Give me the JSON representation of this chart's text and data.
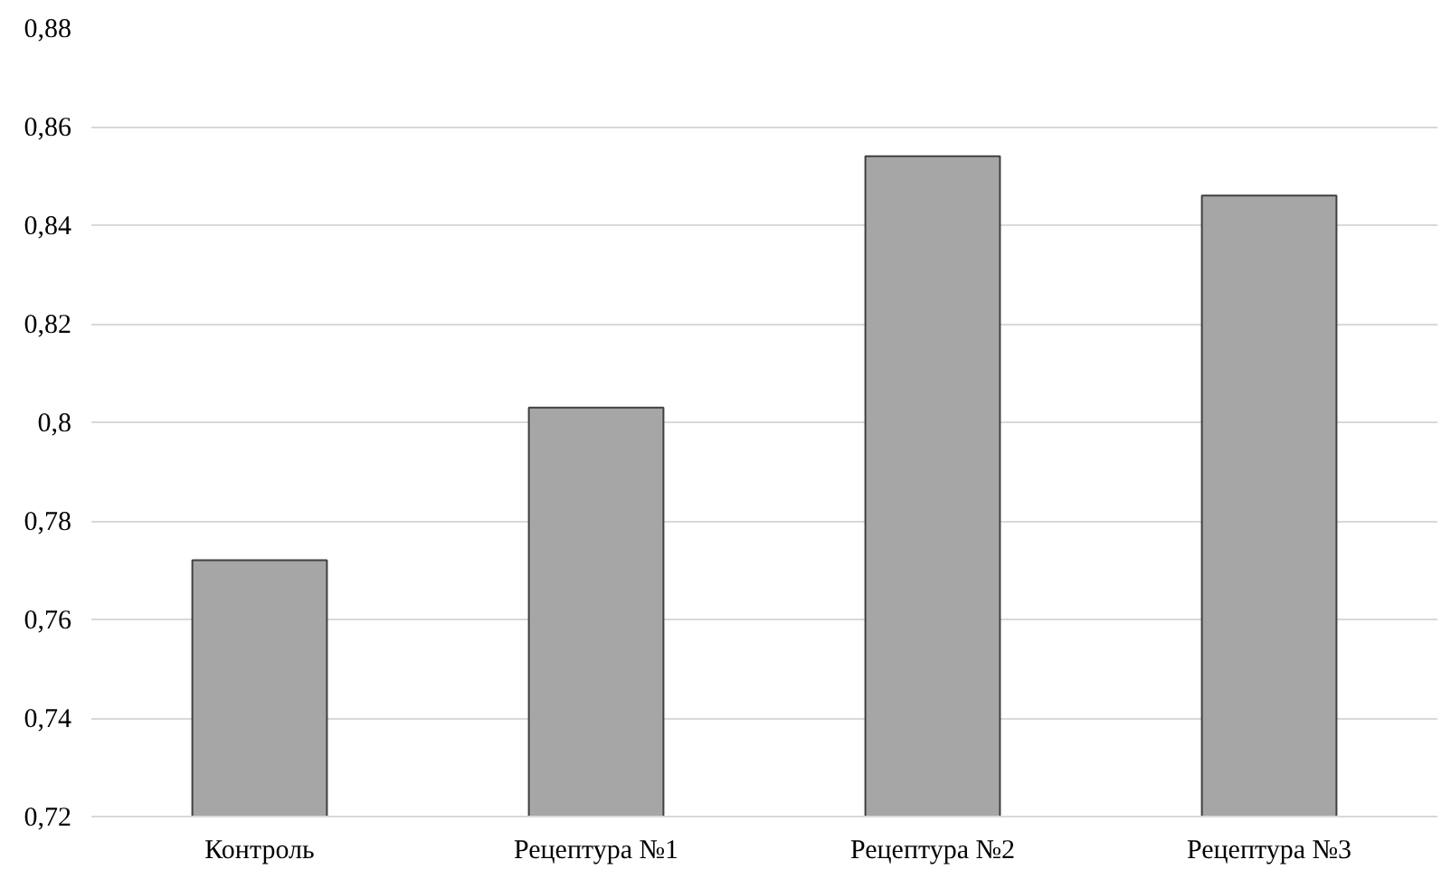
{
  "chart_data": {
    "type": "bar",
    "categories": [
      "Контроль",
      "Рецептура №1",
      "Рецептура №2",
      "Рецептура №3"
    ],
    "values": [
      0.772,
      0.803,
      0.854,
      0.846
    ],
    "color": "#a6a6a6",
    "ylim": [
      0.72,
      0.88
    ],
    "yticks": [
      {
        "value": 0.72,
        "label": "0,72"
      },
      {
        "value": 0.74,
        "label": "0,74"
      },
      {
        "value": 0.76,
        "label": "0,76"
      },
      {
        "value": 0.78,
        "label": "0,78"
      },
      {
        "value": 0.8,
        "label": "0,8"
      },
      {
        "value": 0.82,
        "label": "0,82"
      },
      {
        "value": 0.84,
        "label": "0,84"
      },
      {
        "value": 0.86,
        "label": "0,86"
      },
      {
        "value": 0.88,
        "label": "0,88"
      }
    ],
    "grid": "y"
  }
}
